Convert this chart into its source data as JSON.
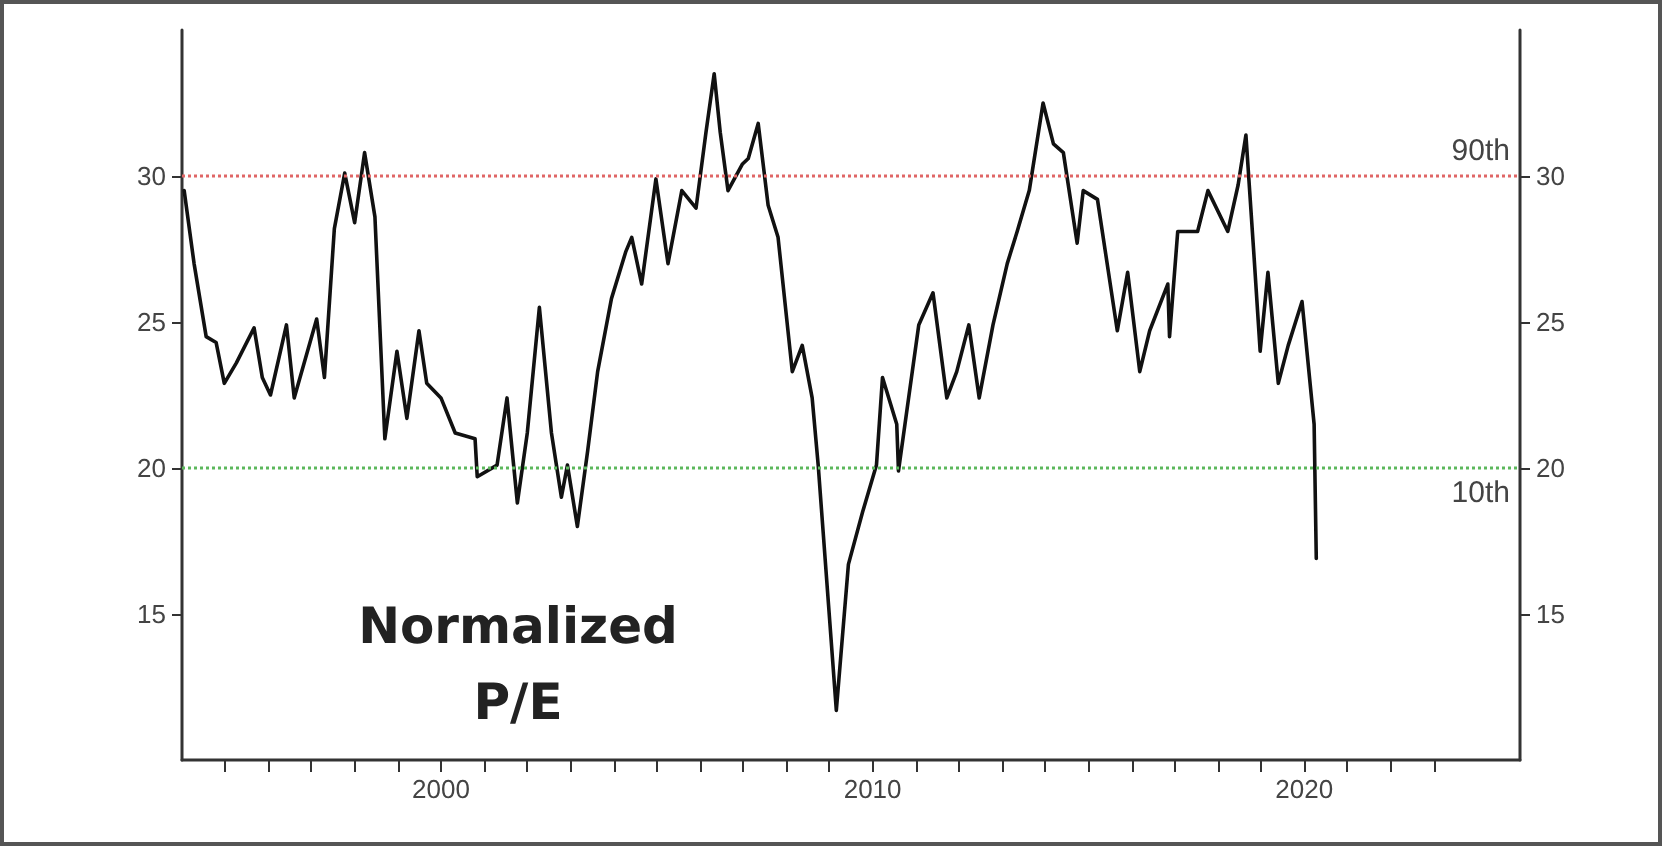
{
  "chart_data": {
    "type": "line",
    "annotations": [
      "Normalized P/E"
    ],
    "x": [
      1994.05,
      1994.28,
      1994.56,
      1994.79,
      1994.98,
      1995.26,
      1995.67,
      1995.86,
      1996.05,
      1996.42,
      1996.6,
      1997.12,
      1997.3,
      1997.53,
      1997.77,
      1998.0,
      1998.23,
      1998.47,
      1998.7,
      1998.98,
      1999.21,
      1999.49,
      1999.67,
      2000.0,
      2000.33,
      2000.79,
      2000.84,
      2001.3,
      2001.53,
      2001.77,
      2002.0,
      2002.28,
      2002.56,
      2002.79,
      2002.93,
      2003.16,
      2003.4,
      2003.63,
      2003.95,
      2004.28,
      2004.42,
      2004.65,
      2004.98,
      2005.26,
      2005.58,
      2005.91,
      2006.14,
      2006.33,
      2006.47,
      2006.65,
      2006.98,
      2007.12,
      2007.35,
      2007.58,
      2007.81,
      2008.14,
      2008.37,
      2008.6,
      2008.74,
      2008.98,
      2009.16,
      2009.44,
      2009.77,
      2010.09,
      2010.23,
      2010.56,
      2010.6,
      2011.07,
      2011.4,
      2011.72,
      2011.95,
      2012.23,
      2012.47,
      2012.79,
      2013.12,
      2013.35,
      2013.63,
      2013.95,
      2014.19,
      2014.42,
      2014.74,
      2014.88,
      2015.21,
      2015.67,
      2015.91,
      2016.19,
      2016.42,
      2016.84,
      2016.88,
      2017.07,
      2017.53,
      2017.77,
      2018.23,
      2018.47,
      2018.65,
      2018.84,
      2018.98,
      2019.16,
      2019.4,
      2019.63,
      2019.95,
      2020.23,
      2020.28
    ],
    "series": [
      {
        "color": "#111111",
        "values": [
          29.5,
          27.0,
          24.5,
          24.3,
          22.9,
          23.6,
          24.8,
          23.1,
          22.5,
          24.9,
          22.4,
          25.1,
          23.1,
          28.2,
          30.1,
          28.4,
          30.8,
          28.6,
          21.0,
          24.0,
          21.7,
          24.7,
          22.9,
          22.4,
          21.2,
          21.0,
          19.7,
          20.1,
          22.4,
          18.8,
          21.2,
          25.5,
          21.2,
          19.0,
          20.1,
          18.0,
          20.6,
          23.3,
          25.8,
          27.4,
          27.9,
          26.3,
          29.9,
          27.0,
          29.5,
          28.9,
          31.5,
          33.5,
          31.5,
          29.5,
          30.4,
          30.6,
          31.8,
          29.0,
          27.9,
          23.3,
          24.2,
          22.4,
          20.1,
          15.3,
          11.7,
          16.7,
          18.5,
          20.1,
          23.1,
          21.5,
          19.9,
          24.9,
          26.0,
          22.4,
          23.3,
          24.9,
          22.4,
          24.9,
          27.0,
          28.1,
          29.5,
          32.5,
          31.1,
          30.8,
          27.7,
          29.5,
          29.2,
          24.7,
          26.7,
          23.3,
          24.7,
          26.3,
          24.5,
          28.1,
          28.1,
          29.5,
          28.1,
          29.7,
          31.4,
          27.2,
          24.0,
          26.7,
          22.9,
          24.2,
          25.7,
          21.5,
          16.9
        ]
      }
    ],
    "xlim": [
      1994,
      2025
    ],
    "xticks": [
      {
        "value": 1995,
        "label": null
      },
      {
        "value": 1996,
        "label": null
      },
      {
        "value": 1997,
        "label": null
      },
      {
        "value": 1998,
        "label": null
      },
      {
        "value": 1999,
        "label": null
      },
      2000,
      {
        "value": 2001,
        "label": null
      },
      {
        "value": 2002,
        "label": null
      },
      {
        "value": 2003,
        "label": null
      },
      {
        "value": 2004,
        "label": null
      },
      {
        "value": 2005,
        "label": null
      },
      {
        "value": 2006,
        "label": null
      },
      {
        "value": 2007,
        "label": null
      },
      {
        "value": 2008,
        "label": null
      },
      {
        "value": 2009,
        "label": null
      },
      2010,
      {
        "value": 2011,
        "label": null
      },
      {
        "value": 2012,
        "label": null
      },
      {
        "value": 2013,
        "label": null
      },
      {
        "value": 2014,
        "label": null
      },
      {
        "value": 2015,
        "label": null
      },
      {
        "value": 2016,
        "label": null
      },
      {
        "value": 2017,
        "label": null
      },
      {
        "value": 2018,
        "label": null
      },
      {
        "value": 2019,
        "label": null
      },
      2020,
      {
        "value": 2021,
        "label": null
      },
      {
        "value": 2022,
        "label": null
      },
      {
        "value": 2023,
        "label": null
      }
    ],
    "ylim": [
      10,
      35
    ],
    "yticks": [
      15,
      20,
      25,
      30
    ],
    "y2lim": [
      10,
      35
    ],
    "y2ticks": [
      15,
      20,
      25,
      30
    ],
    "ref_lines": [
      {
        "axis": "y",
        "value": 30,
        "label": "90th",
        "color": "#e06666",
        "line_style": "dotted"
      },
      {
        "axis": "y",
        "value": 20,
        "label": "10th",
        "color": "#5cb85c",
        "line_style": "dotted"
      }
    ],
    "grid": false,
    "marker": "none",
    "line_style": "solid"
  }
}
